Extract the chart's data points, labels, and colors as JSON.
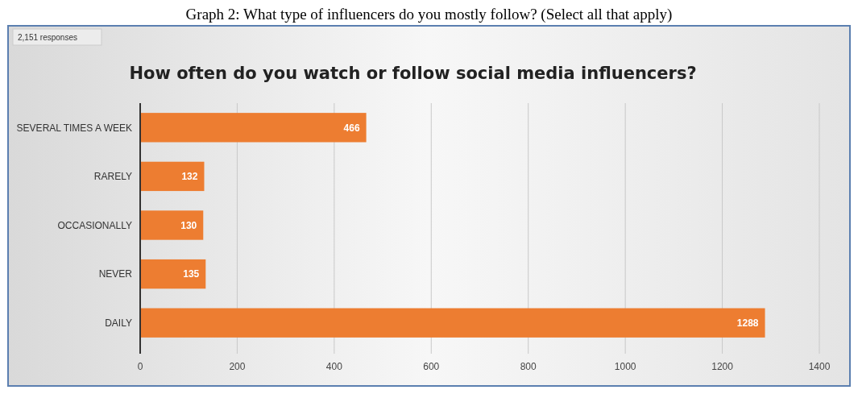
{
  "chart_data": {
    "type": "bar",
    "orientation": "horizontal",
    "title": "How often do you watch or follow social media influencers?",
    "subtitle": "2,151 responses",
    "annotations": [
      "Graph 2: What type of influencers do you mostly follow? (Select all that apply)"
    ],
    "categories": [
      "SEVERAL TIMES A WEEK",
      "RARELY",
      "OCCASIONALLY",
      "NEVER",
      "DAILY"
    ],
    "values": [
      466,
      132,
      130,
      135,
      1288
    ],
    "color": "#ed7d31",
    "xlim": [
      0,
      1400
    ],
    "xticks": [
      0,
      200,
      400,
      600,
      800,
      1000,
      1200,
      1400
    ],
    "grid": "x",
    "data_labels": true
  }
}
